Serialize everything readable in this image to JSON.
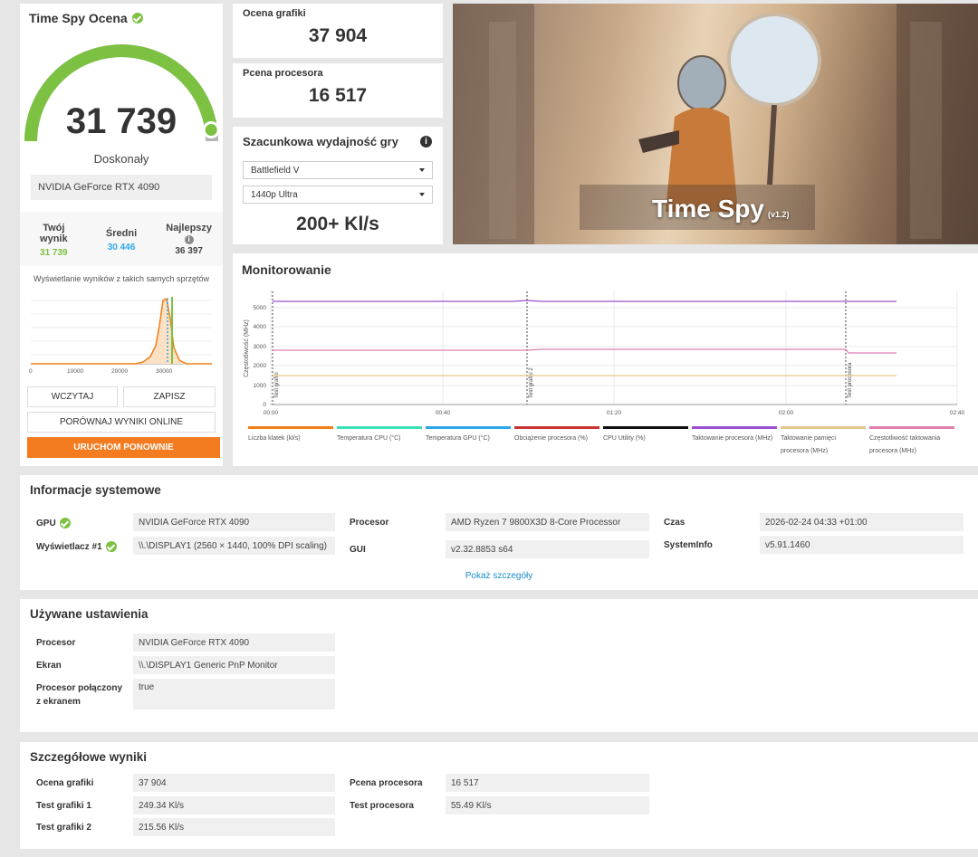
{
  "score": {
    "title": "Time Spy Ocena",
    "value": "31 739",
    "rating": "Doskonały",
    "gpu": "NVIDIA GeForce RTX 4090",
    "gauge_fraction": 0.96,
    "compare": {
      "yours_label": "Twój wynik",
      "yours_value": "31 739",
      "avg_label": "Średni",
      "avg_value": "30 446",
      "best_label": "Najlepszy",
      "best_value": "36 397"
    },
    "histogram_label": "Wyświetlanie wyników z takich samych sprzętów",
    "histogram_ticks": [
      "0",
      "10000",
      "20000",
      "30000"
    ],
    "buttons": {
      "load": "WCZYTAJ",
      "save": "ZAPISZ",
      "compare": "PORÓWNAJ WYNIKI ONLINE",
      "rerun": "URUCHOM PONOWNIE"
    }
  },
  "graphics": {
    "label": "Ocena grafiki",
    "value": "37 904"
  },
  "cpu": {
    "label": "Pcena procesora",
    "value": "16 517"
  },
  "estimate": {
    "title": "Szacunkowa wydajność gry",
    "game": "Battlefield V",
    "resolution": "1440p Ultra",
    "fps": "200+ Kl/s"
  },
  "hero": {
    "title": "Time Spy",
    "version": "(v1.2)"
  },
  "monitoring": {
    "title": "Monitorowanie",
    "y_label": "Częstotliwość (MHz)",
    "x_ticks": [
      "00:00",
      "00:40",
      "01:20",
      "02:00",
      "02:40"
    ],
    "y_ticks": [
      "0",
      "1000",
      "2000",
      "3000",
      "4000",
      "5000"
    ],
    "markers": [
      "Test grafiki",
      "Test grafiki 2",
      "Test procesora"
    ],
    "legend": [
      {
        "name": "Liczba klatek (kl/s)",
        "color": "#f07f1a"
      },
      {
        "name": "Temperatura CPU (°C)",
        "color": "#3de0b8"
      },
      {
        "name": "Temperatura GPU (°C)",
        "color": "#2ea8e8"
      },
      {
        "name": "Obciążenie procesora (%)",
        "color": "#c93434"
      },
      {
        "name": "CPU Utility (%)",
        "color": "#111111"
      },
      {
        "name": "Taktowanie procesora (MHz)",
        "color": "#9a4fd0"
      },
      {
        "name": "Taktowanie pamięci procesora (MHz)",
        "color": "#e2c78a"
      },
      {
        "name": "Częstotliwość taktowania procesora (MHz)",
        "color": "#e17fb0"
      }
    ]
  },
  "system": {
    "title": "Informacje systemowe",
    "gpu_label": "GPU",
    "gpu_value": "NVIDIA GeForce RTX 4090",
    "display_label": "Wyświetlacz #1",
    "display_value": "\\\\.\\DISPLAY1 (2560 × 1440, 100% DPI scaling)",
    "cpu_label": "Procesor",
    "cpu_value": "AMD Ryzen 7 9800X3D 8-Core Processor",
    "gui_label": "GUI",
    "gui_value": "v2.32.8853 s64",
    "time_label": "Czas",
    "time_value": "2026-02-24 04:33 +01:00",
    "sysinfo_label": "SystemInfo",
    "sysinfo_value": "v5.91.1460",
    "show_more": "Pokaż szczegóły"
  },
  "settings": {
    "title": "Używane ustawienia",
    "cpu_label": "Procesor",
    "cpu_value": "NVIDIA GeForce RTX 4090",
    "screen_label": "Ekran",
    "screen_value": "\\\\.\\DISPLAY1 Generic PnP Monitor",
    "connected_label_1": "Procesor połączony",
    "connected_label_2": "z ekranem",
    "connected_value": "true"
  },
  "details": {
    "title": "Szczegółowe wyniki",
    "graphics_label": "Ocena grafiki",
    "graphics_value": "37 904",
    "gt1_label": "Test grafiki 1",
    "gt1_value": "249.34 Kl/s",
    "gt2_label": "Test grafiki 2",
    "gt2_value": "215.56 Kl/s",
    "cpu_label": "Pcena procesora",
    "cpu_value": "16 517",
    "cput_label": "Test procesora",
    "cput_value": "55.49 Kl/s"
  }
}
